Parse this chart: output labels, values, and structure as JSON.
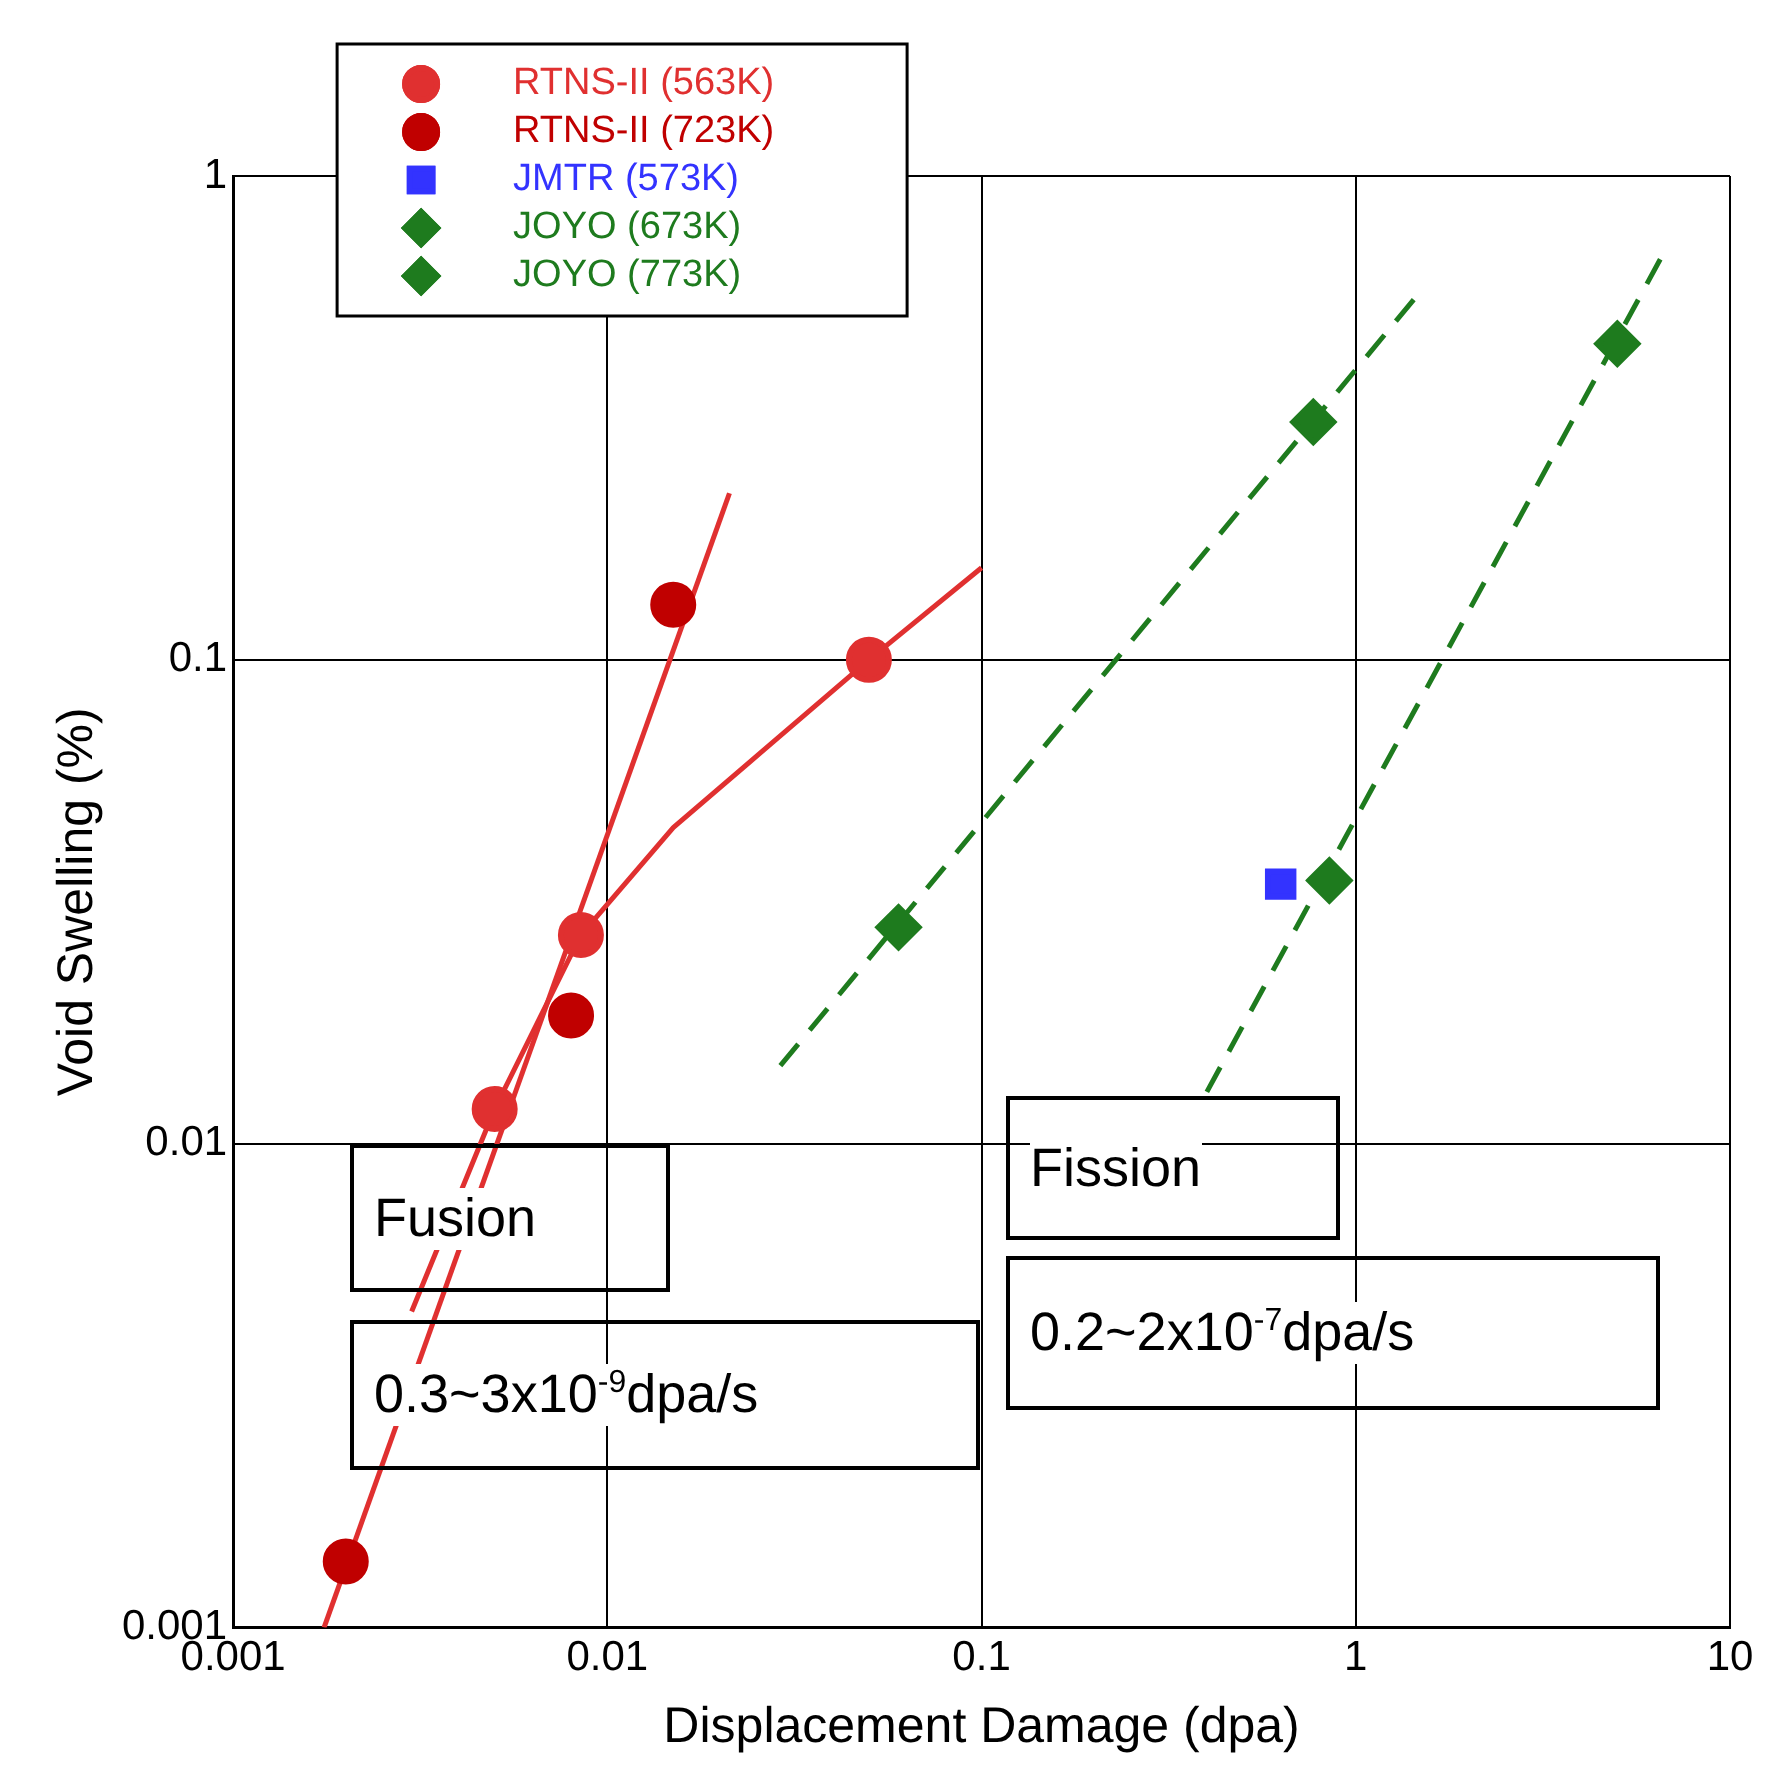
{
  "chart_data": {
    "type": "scatter",
    "xlabel": "Displacement Damage (dpa)",
    "ylabel": "Void Swelling (%)",
    "log": "xy",
    "xlim": [
      0.001,
      10
    ],
    "ylim": [
      0.001,
      1
    ],
    "xticks": [
      0.001,
      0.01,
      0.1,
      1,
      10
    ],
    "yticks": [
      0.001,
      0.01,
      0.1,
      1
    ],
    "grid": true,
    "legend": "top left",
    "series": [
      {
        "name": "RTNS-II (563K)",
        "color": "#e03030",
        "marker": "circle",
        "x": [
          0.005,
          0.0085,
          0.05
        ],
        "values": [
          0.0118,
          0.027,
          0.1
        ]
      },
      {
        "name": "RTNS-II (723K)",
        "color": "#c00000",
        "marker": "circle",
        "x": [
          0.002,
          0.008,
          0.015
        ],
        "values": [
          0.00137,
          0.0184,
          0.13
        ]
      },
      {
        "name": "JMTR (573K)",
        "color": "#3333ff",
        "marker": "square",
        "x": [
          0.63
        ],
        "values": [
          0.0344
        ]
      },
      {
        "name": "JOYO (673K)",
        "color": "#1e7b1e",
        "marker": "diamond",
        "x": [
          0.06,
          0.77
        ],
        "values": [
          0.028,
          0.31
        ]
      },
      {
        "name": "JOYO (773K)",
        "color": "#1e7b1e",
        "marker": "diamond",
        "x": [
          0.85,
          5.0
        ],
        "values": [
          0.035,
          0.45
        ]
      },
      {
        "type": "line",
        "color": "#e03030",
        "marker": "none",
        "line_style": "solid",
        "x": [
          0.00175,
          0.0212
        ],
        "values": [
          0.001,
          0.221
        ]
      },
      {
        "type": "line",
        "color": "#e03030",
        "marker": "none",
        "line_style": "solid",
        "x": [
          0.003,
          0.005,
          0.0085,
          0.015,
          0.05,
          0.1
        ],
        "values": [
          0.0045,
          0.0118,
          0.027,
          0.045,
          0.1,
          0.155
        ]
      },
      {
        "type": "line",
        "color": "#1e7b1e",
        "marker": "none",
        "line_style": "dashed",
        "x": [
          0.029,
          1.43
        ],
        "values": [
          0.0145,
          0.556
        ]
      },
      {
        "type": "line",
        "color": "#1e7b1e",
        "marker": "none",
        "line_style": "dashed",
        "x": [
          0.4,
          6.56
        ],
        "values": [
          0.0128,
          0.68
        ]
      }
    ],
    "annotations": [
      "Fusion",
      "0.3~3x10$^{-9}$dpa/s",
      "Fission",
      "0.2~2x10$^{-7}$dpa/s"
    ]
  }
}
